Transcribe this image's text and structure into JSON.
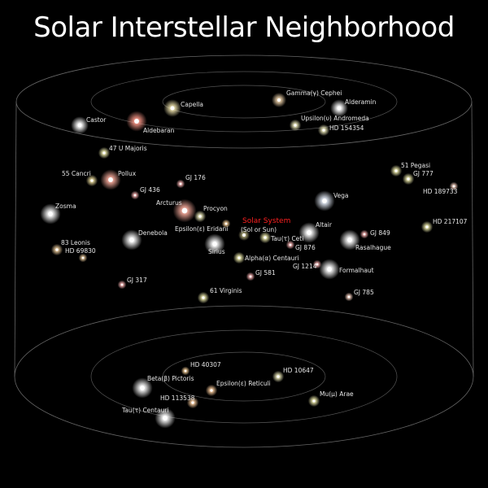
{
  "title": "Solar Interstellar Neighborhood",
  "highlight": {
    "name": "Solar System",
    "sub": "(Sol or Sun)"
  },
  "stars": [
    {
      "name": "Capella",
      "color": "#f3e7b0"
    },
    {
      "name": "Gamma(γ) Cephei",
      "color": "#f6d9b0"
    },
    {
      "name": "Alderamin",
      "color": "#ffffff"
    },
    {
      "name": "Castor",
      "color": "#ffffff"
    },
    {
      "name": "Aldebaran",
      "color": "#ff9a8a"
    },
    {
      "name": "Upsilon(υ) Andromeda",
      "color": "#f3f0c0"
    },
    {
      "name": "HD 154354",
      "color": "#f3f0c0"
    },
    {
      "name": "47 U Majoris",
      "color": "#f3f0b0"
    },
    {
      "name": "51 Pegasi",
      "color": "#f3f0b0"
    },
    {
      "name": "55 Cancri",
      "color": "#f0e0a0"
    },
    {
      "name": "Pollux",
      "color": "#ffb0a0"
    },
    {
      "name": "GJ 777",
      "color": "#f3f0b0"
    },
    {
      "name": "GJ 176",
      "color": "#ffb8b8"
    },
    {
      "name": "HD 189733",
      "color": "#ffd8c8"
    },
    {
      "name": "GJ 436",
      "color": "#ffb8b8"
    },
    {
      "name": "Vega",
      "color": "#eaf2ff"
    },
    {
      "name": "Zosma",
      "color": "#ffffff"
    },
    {
      "name": "Arcturus",
      "color": "#ffb0a0"
    },
    {
      "name": "Procyon",
      "color": "#f3f0c0"
    },
    {
      "name": "HD 217107",
      "color": "#f3f0b0"
    },
    {
      "name": "Altair",
      "color": "#ffffff"
    },
    {
      "name": "GJ 849",
      "color": "#ffb8b8"
    },
    {
      "name": "Epsilon(ε) Eridani",
      "color": "#ffd8a0"
    },
    {
      "name": "Tau(τ) Ceti",
      "color": "#f3f0b0"
    },
    {
      "name": "Denebola",
      "color": "#ffffff"
    },
    {
      "name": "Rasalhague",
      "color": "#ffffff"
    },
    {
      "name": "83 Leonis",
      "color": "#f0d0a0"
    },
    {
      "name": "GJ 876",
      "color": "#ffb8b8"
    },
    {
      "name": "HD 69830",
      "color": "#f0d0a0"
    },
    {
      "name": "Sirius",
      "color": "#ffffff"
    },
    {
      "name": "Alpha(α) Centauri",
      "color": "#f3f0b0"
    },
    {
      "name": "GJ 1214",
      "color": "#ffb8b8"
    },
    {
      "name": "Formalhaut",
      "color": "#ffffff"
    },
    {
      "name": "GJ 581",
      "color": "#ffb8b8"
    },
    {
      "name": "GJ 317",
      "color": "#ffb8b8"
    },
    {
      "name": "61 Virginis",
      "color": "#f3f0b0"
    },
    {
      "name": "GJ 785",
      "color": "#ffd8c8"
    },
    {
      "name": "HD 40307",
      "color": "#ffd8a0"
    },
    {
      "name": "HD 10647",
      "color": "#f3f0c0"
    },
    {
      "name": "Beta(β) Pictoris",
      "color": "#ffffff"
    },
    {
      "name": "Epsilon(ε) Reticuli",
      "color": "#ffd0a0"
    },
    {
      "name": "HD 113538",
      "color": "#ffd0a0"
    },
    {
      "name": "Mu(μ) Arae",
      "color": "#f3f0b0"
    },
    {
      "name": "Tau(τ) Centauri",
      "color": "#ffffff"
    }
  ]
}
